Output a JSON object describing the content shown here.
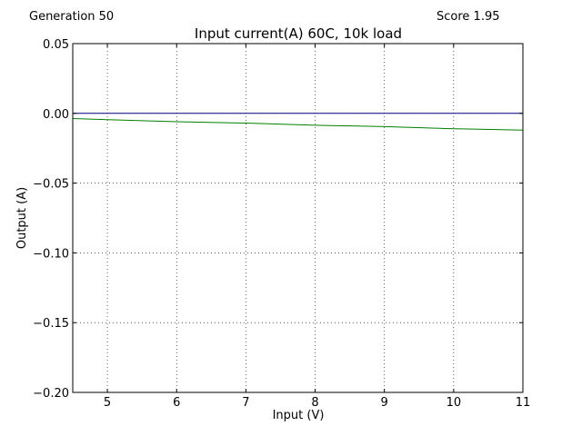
{
  "header": {
    "generation": "Generation 50",
    "score": "Score 1.95"
  },
  "chart_data": {
    "type": "line",
    "title": "Input current(A) 60C, 10k load",
    "xlabel": "Input (V)",
    "ylabel": "Output (A)",
    "xlim": [
      4.5,
      11
    ],
    "ylim": [
      -0.2,
      0.05
    ],
    "xticks": [
      5,
      6,
      7,
      8,
      9,
      10,
      11
    ],
    "xtick_labels": [
      "5",
      "6",
      "7",
      "8",
      "9",
      "10",
      "11"
    ],
    "yticks": [
      0.05,
      0.0,
      -0.05,
      -0.1,
      -0.15,
      -0.2
    ],
    "ytick_labels": [
      "0.05",
      "0.00",
      "−0.05",
      "−0.10",
      "−0.15",
      "−0.20"
    ],
    "grid": true,
    "series": [
      {
        "color": "#000080",
        "x": [
          4.5,
          5,
          6,
          7,
          8,
          9,
          10,
          11
        ],
        "y": [
          0.0,
          0.0,
          0.0,
          0.0,
          0.0,
          0.0,
          0.0,
          0.0
        ]
      },
      {
        "color": "#008000",
        "x": [
          4.5,
          5,
          6,
          7,
          8,
          9,
          10,
          11
        ],
        "y": [
          -0.0037,
          -0.0045,
          -0.006,
          -0.007,
          -0.0085,
          -0.0095,
          -0.011,
          -0.012
        ]
      }
    ]
  }
}
